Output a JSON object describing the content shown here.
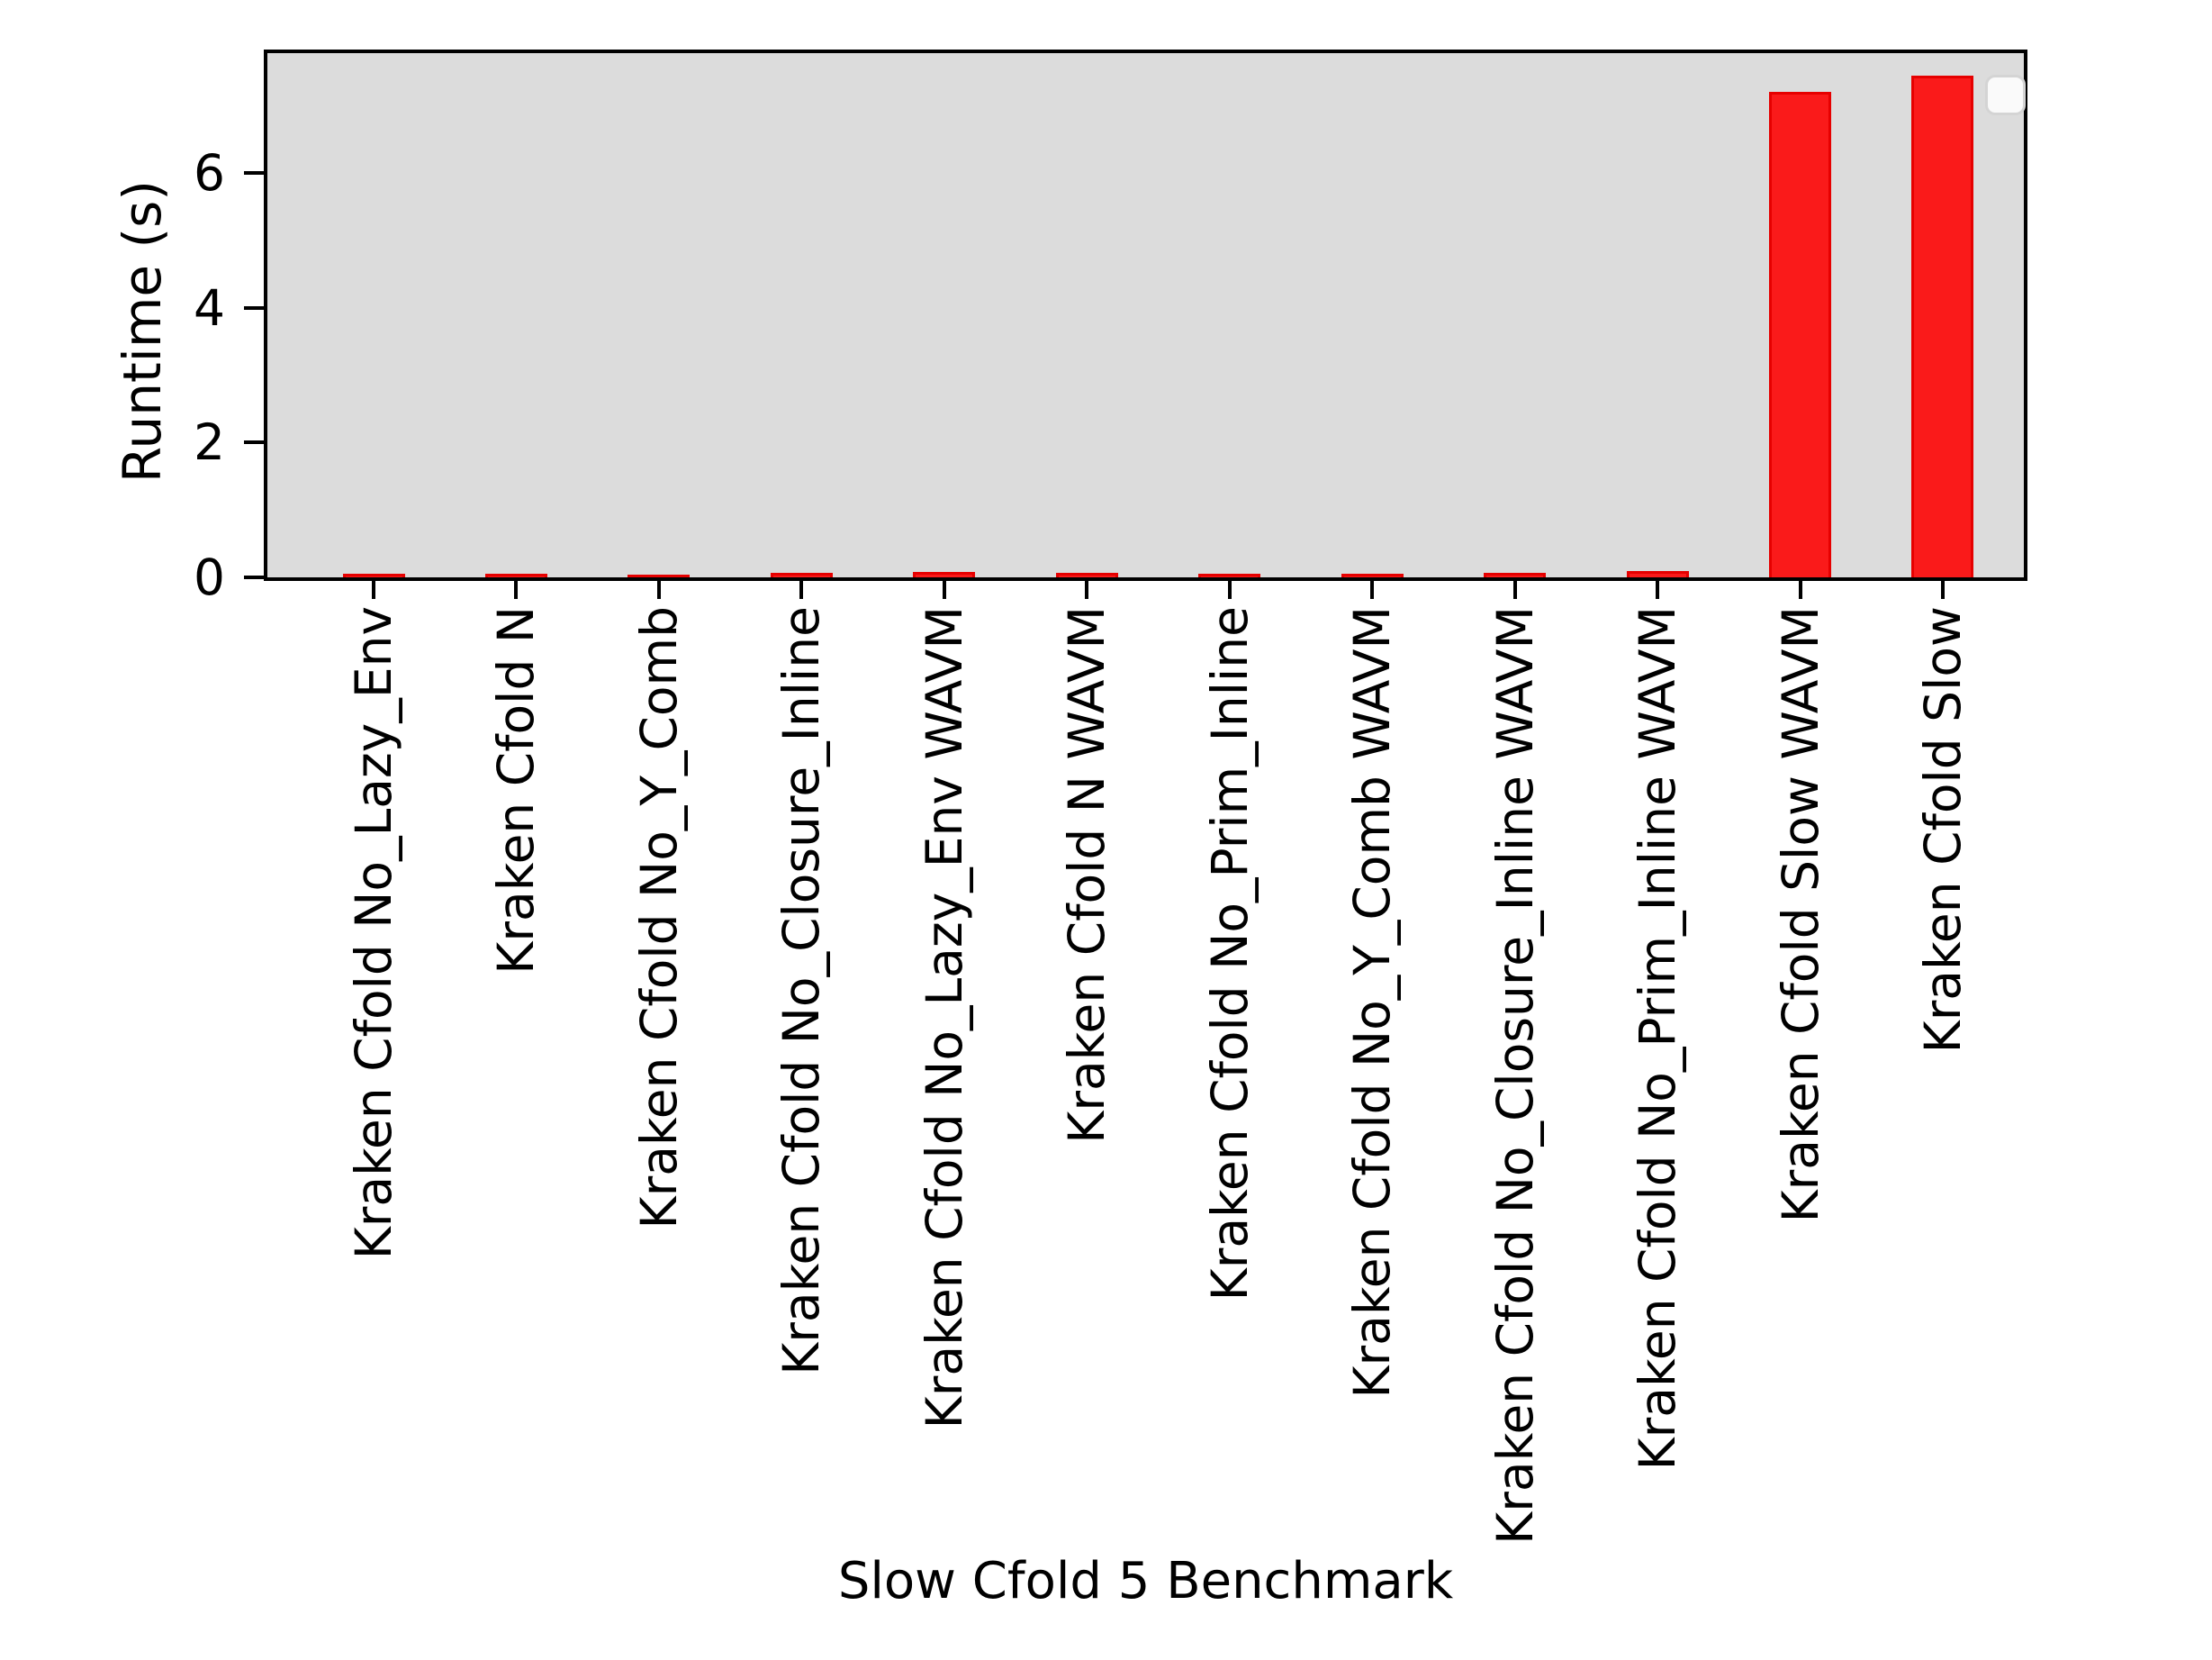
{
  "chart_data": {
    "type": "bar",
    "title": "",
    "xlabel": "Slow Cfold 5 Benchmark",
    "ylabel": "Runtime (s)",
    "categories": [
      "Kraken Cfold No_Lazy_Env",
      "Kraken Cfold N",
      "Kraken Cfold No_Y_Comb",
      "Kraken Cfold No_Closure_Inline",
      "Kraken Cfold No_Lazy_Env WAVM",
      "Kraken Cfold N WAVM",
      "Kraken Cfold No_Prim_Inline",
      "Kraken Cfold No_Y_Comb WAVM",
      "Kraken Cfold No_Closure_Inline WAVM",
      "Kraken Cfold No_Prim_Inline WAVM",
      "Kraken Cfold Slow WAVM",
      "Kraken Cfold Slow"
    ],
    "values": [
      0.05,
      0.05,
      0.04,
      0.07,
      0.08,
      0.07,
      0.05,
      0.05,
      0.07,
      0.1,
      7.2,
      7.45
    ],
    "yticks": [
      0,
      2,
      4,
      6
    ],
    "ytick_labels": [
      "0",
      "2",
      "4",
      "6"
    ],
    "ylim": [
      0,
      7.78
    ],
    "grid": false,
    "legend": {
      "present": true,
      "entries": [],
      "position": "upper-right"
    },
    "colors": {
      "plot_bg": "#dcdcdc",
      "figure_bg": "#ffffff",
      "bar_fill": "#fa1a1a",
      "bar_edge": "#e60000",
      "axis": "#000000",
      "legend_bg": "#fafafa",
      "legend_border": "#d4d4d4"
    }
  }
}
